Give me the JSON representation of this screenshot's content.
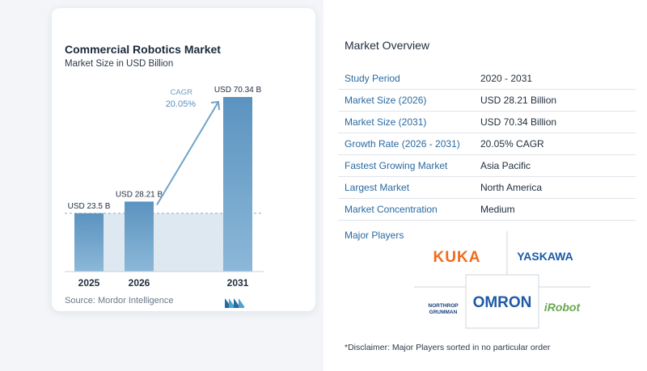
{
  "chart_data": {
    "type": "bar",
    "title": "Commercial Robotics Market",
    "subtitle": "Market Size in USD Billion",
    "categories": [
      "2025",
      "2026",
      "2031"
    ],
    "values": [
      23.5,
      28.21,
      70.34
    ],
    "value_labels": [
      "USD 23.5 B",
      "USD 28.21 B",
      "USD 70.34 B"
    ],
    "annotation": {
      "label": "CAGR",
      "value": "20.05%"
    },
    "colors": {
      "bar": "#5b93c0",
      "bar_light": "#8cb8d8",
      "band": "#dde8f1",
      "arrow": "#6fa3c9"
    }
  },
  "source": "Source:  Mordor Intelligence",
  "overview": {
    "title": "Market Overview",
    "rows": [
      {
        "label": "Study Period",
        "value": "2020 - 2031"
      },
      {
        "label": "Market Size (2026)",
        "value": "USD 28.21 Billion"
      },
      {
        "label": "Market Size (2031)",
        "value": "USD 70.34 Billion"
      },
      {
        "label": "Growth Rate (2026 - 2031)",
        "value": "20.05% CAGR"
      },
      {
        "label": "Fastest Growing Market",
        "value": "Asia Pacific"
      },
      {
        "label": "Largest Market",
        "value": "North America"
      },
      {
        "label": "Market Concentration",
        "value": "Medium"
      }
    ]
  },
  "major_players": {
    "title": "Major Players",
    "logos": {
      "kuka": "KUKA",
      "yaskawa": "YASKAWA",
      "northrop_1": "NORTHROP",
      "northrop_2": "GRUMMAN",
      "omron": "OMRON",
      "irobot": "iRobot"
    },
    "colors": {
      "kuka": "#f26a1b",
      "yaskawa": "#1a5aa8",
      "omron": "#1f5aa6",
      "irobot": "#6aa84f",
      "northrop": "#1a3f78"
    }
  },
  "disclaimer": "*Disclaimer: Major Players sorted in no particular order"
}
